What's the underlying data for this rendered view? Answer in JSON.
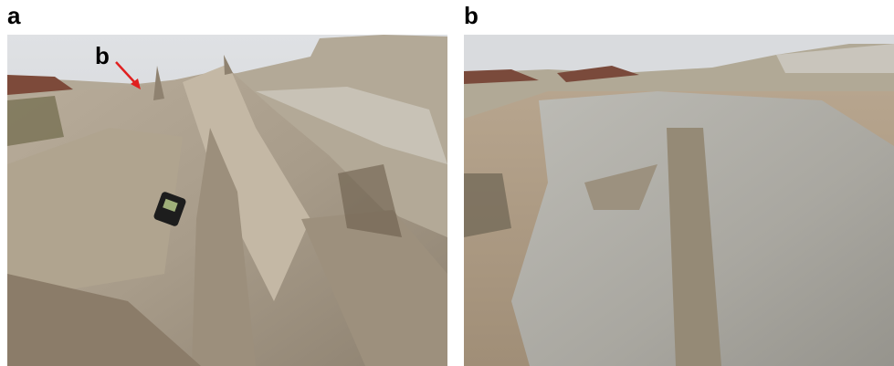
{
  "panels": [
    {
      "label": "a",
      "annotation": "b"
    },
    {
      "label": "b"
    }
  ]
}
